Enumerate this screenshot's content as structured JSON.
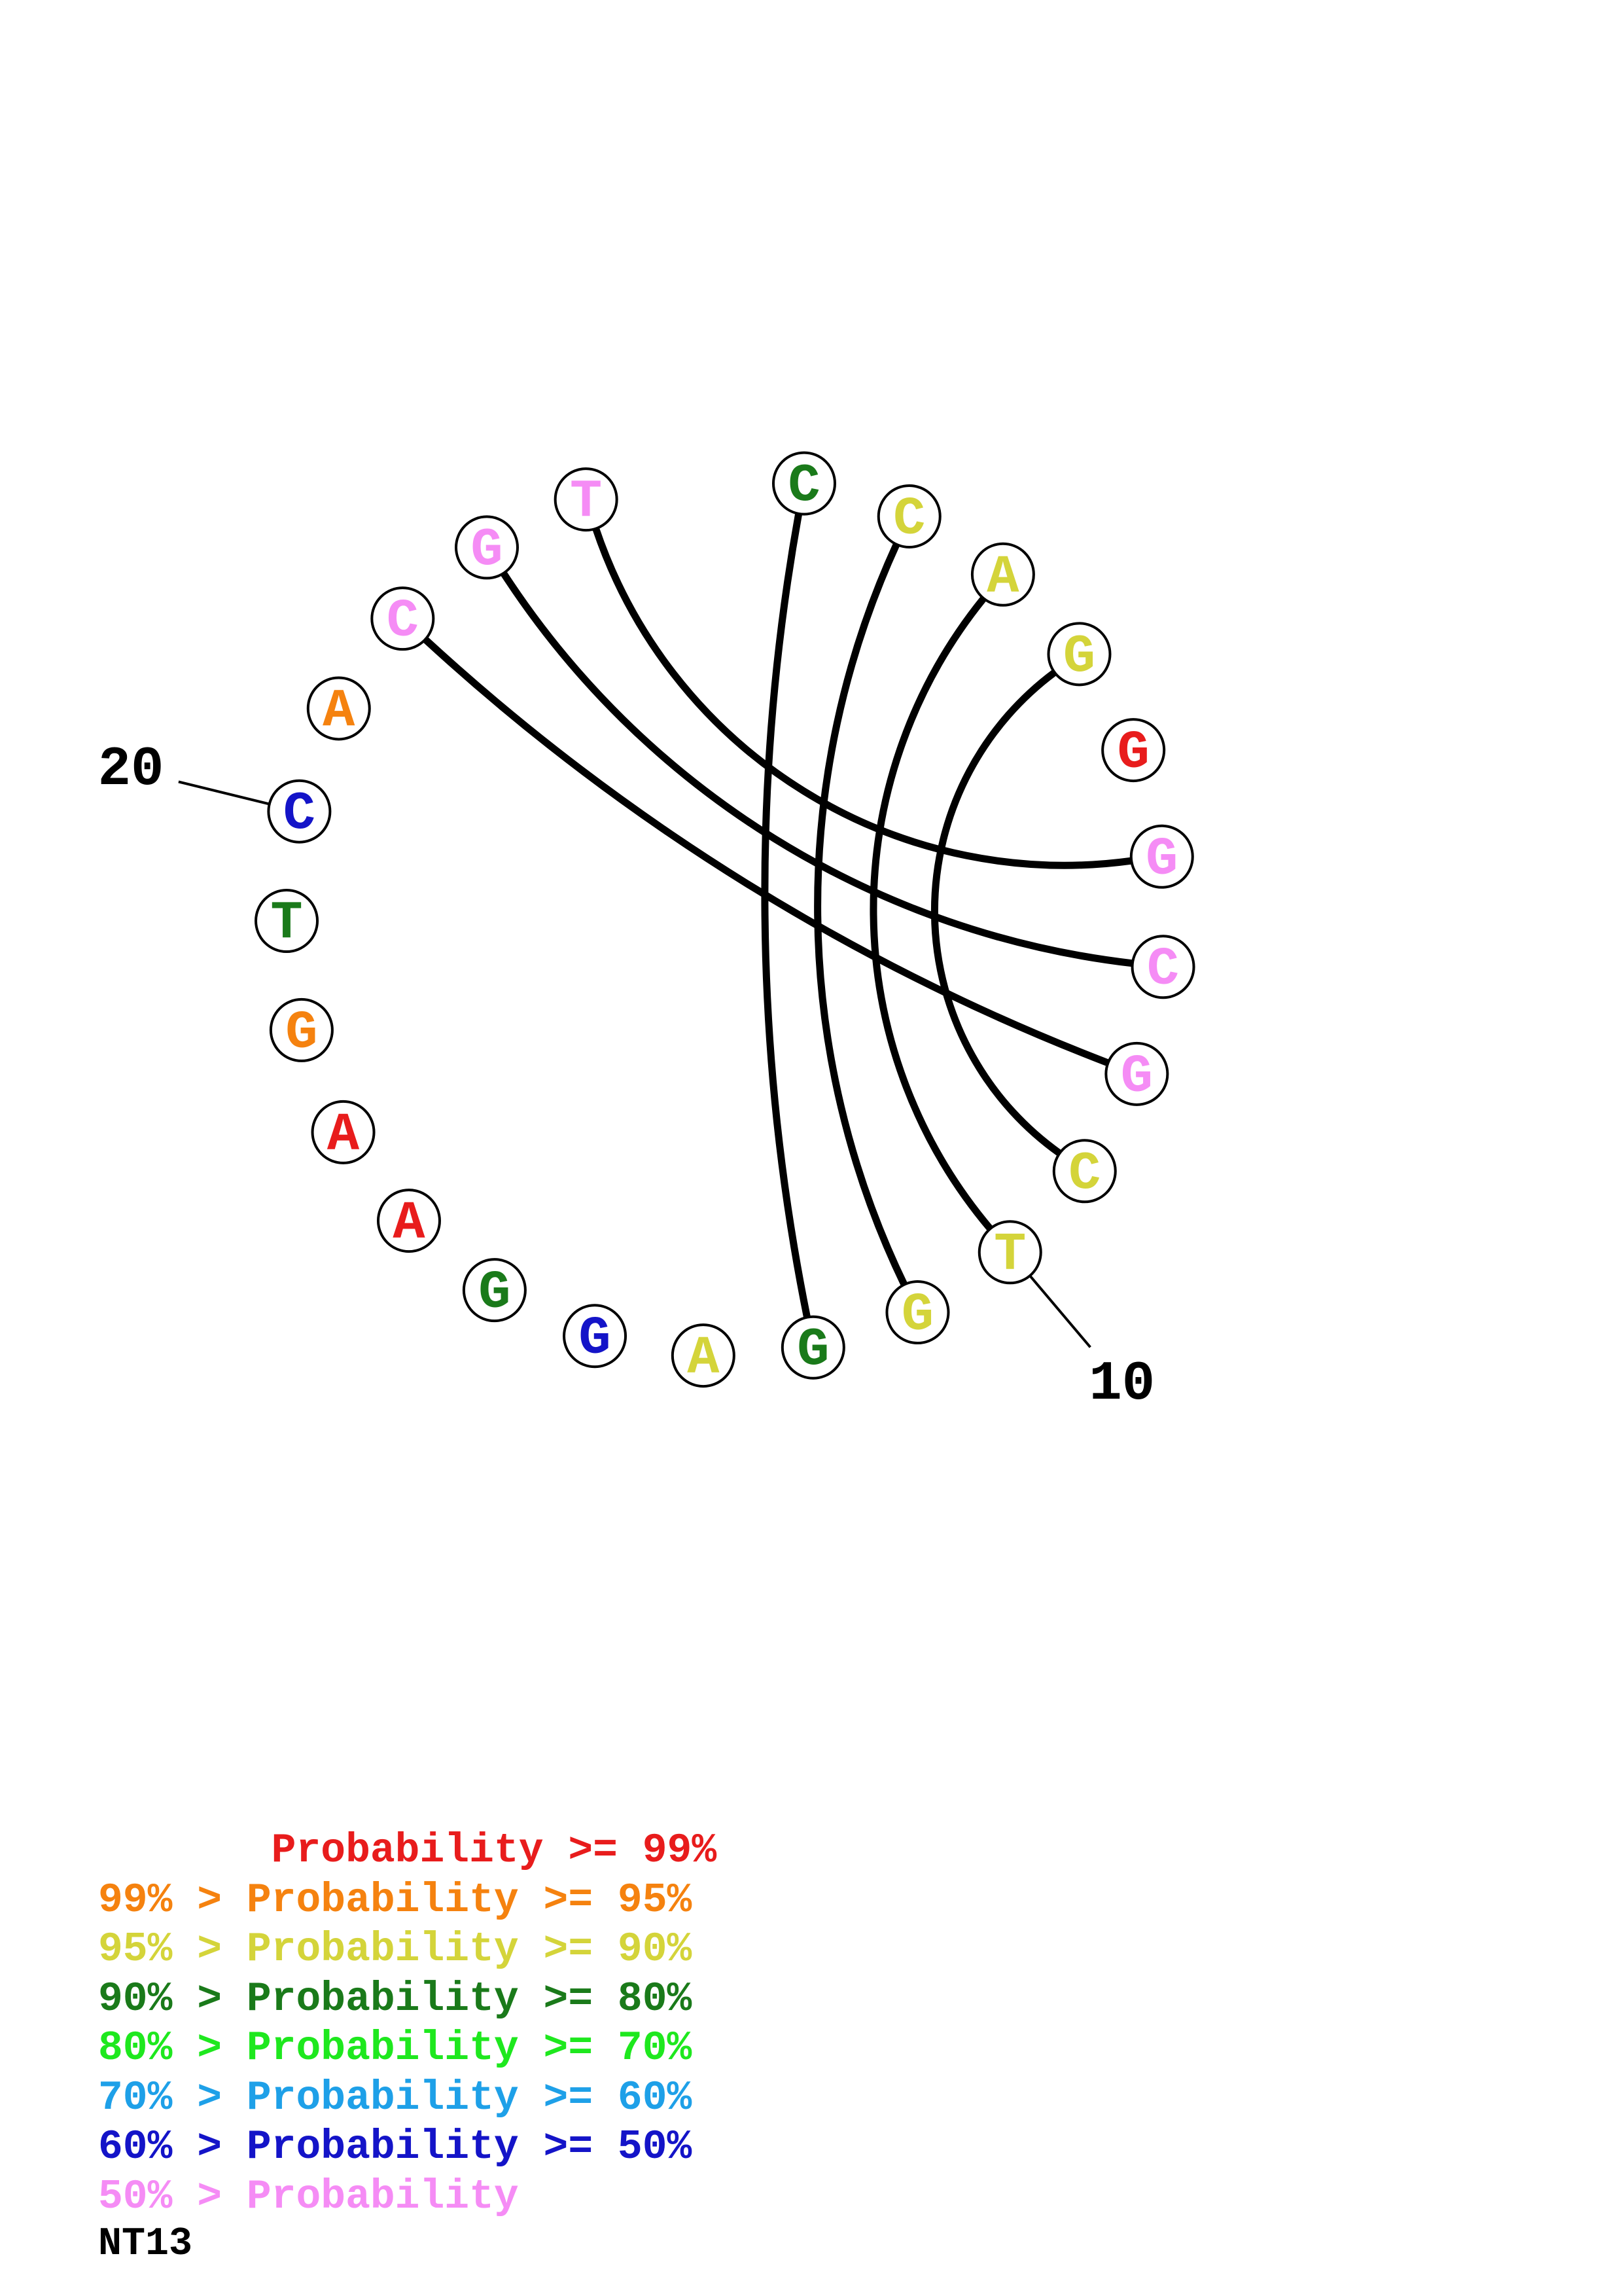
{
  "sequence_name": "NT13",
  "nucleotides": [
    {
      "index": 1,
      "base": "C",
      "color": "#1a7a1a"
    },
    {
      "index": 2,
      "base": "C",
      "color": "#d4d43a"
    },
    {
      "index": 3,
      "base": "A",
      "color": "#d4d43a"
    },
    {
      "index": 4,
      "base": "G",
      "color": "#d4d43a"
    },
    {
      "index": 5,
      "base": "G",
      "color": "#e81c1c"
    },
    {
      "index": 6,
      "base": "G",
      "color": "#f58cf5"
    },
    {
      "index": 7,
      "base": "C",
      "color": "#f58cf5"
    },
    {
      "index": 8,
      "base": "G",
      "color": "#f58cf5"
    },
    {
      "index": 9,
      "base": "C",
      "color": "#d4d43a"
    },
    {
      "index": 10,
      "base": "T",
      "color": "#d4d43a"
    },
    {
      "index": 11,
      "base": "G",
      "color": "#d4d43a"
    },
    {
      "index": 12,
      "base": "G",
      "color": "#1a7a1a"
    },
    {
      "index": 13,
      "base": "A",
      "color": "#d4d43a"
    },
    {
      "index": 14,
      "base": "G",
      "color": "#1414c8"
    },
    {
      "index": 15,
      "base": "G",
      "color": "#1a7a1a"
    },
    {
      "index": 16,
      "base": "A",
      "color": "#e81c1c"
    },
    {
      "index": 17,
      "base": "A",
      "color": "#e81c1c"
    },
    {
      "index": 18,
      "base": "G",
      "color": "#f5820f"
    },
    {
      "index": 19,
      "base": "T",
      "color": "#1a7a1a"
    },
    {
      "index": 20,
      "base": "C",
      "color": "#1414c8"
    },
    {
      "index": 21,
      "base": "A",
      "color": "#f5820f"
    },
    {
      "index": 22,
      "base": "C",
      "color": "#f58cf5"
    },
    {
      "index": 23,
      "base": "G",
      "color": "#f58cf5"
    },
    {
      "index": 24,
      "base": "T",
      "color": "#f58cf5"
    }
  ],
  "pairs": [
    [
      1,
      12
    ],
    [
      2,
      11
    ],
    [
      3,
      10
    ],
    [
      4,
      9
    ],
    [
      6,
      24
    ],
    [
      7,
      23
    ],
    [
      8,
      22
    ]
  ],
  "tick_labels": [
    {
      "nucleotide": 10,
      "label": "10"
    },
    {
      "nucleotide": 20,
      "label": "20"
    }
  ],
  "legend": [
    {
      "prefix": "    ",
      "text": "   Probability >= 99%",
      "color": "#e81c1c"
    },
    {
      "prefix": "99% > ",
      "text": "Probability >= 95%",
      "color": "#f5820f"
    },
    {
      "prefix": "95% > ",
      "text": "Probability >= 90%",
      "color": "#d4d43a"
    },
    {
      "prefix": "90% > ",
      "text": "Probability >= 80%",
      "color": "#1a7a1a"
    },
    {
      "prefix": "80% > ",
      "text": "Probability >= 70%",
      "color": "#1ee81e"
    },
    {
      "prefix": "70% > ",
      "text": "Probability >= 60%",
      "color": "#1ea0e8"
    },
    {
      "prefix": "60% > ",
      "text": "Probability >= 50%",
      "color": "#1414c8"
    },
    {
      "prefix": "50% > ",
      "text": "Probability",
      "color": "#f58cf5"
    }
  ]
}
